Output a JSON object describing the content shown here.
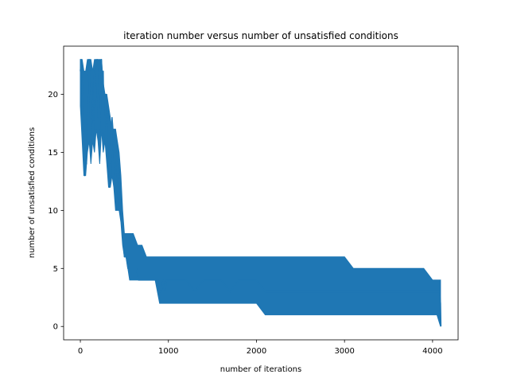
{
  "chart_data": {
    "type": "line",
    "title": "iteration number versus number of unsatisfied conditions",
    "xlabel": "number of iterations",
    "ylabel": "number of unsatisfied conditions",
    "xlim": [
      -190,
      4290
    ],
    "ylim": [
      -1.15,
      24.15
    ],
    "xticks": [
      0,
      1000,
      2000,
      3000,
      4000
    ],
    "yticks": [
      0,
      5,
      10,
      15,
      20
    ],
    "grid": false,
    "color": "#1f77b4",
    "series": [
      {
        "x": [
          0,
          10,
          20,
          30,
          40,
          50,
          60,
          70,
          80,
          90,
          100,
          110,
          120,
          130,
          140,
          150,
          160,
          170,
          180,
          190,
          200,
          210,
          220,
          230,
          240,
          250,
          260,
          270,
          280,
          290,
          300,
          310,
          320,
          330,
          340,
          350,
          360,
          370,
          380,
          390,
          400,
          410,
          420,
          430,
          440,
          450,
          460,
          470,
          480,
          490,
          500,
          520,
          540,
          560,
          580,
          600,
          620,
          640,
          660,
          680,
          700,
          720,
          740,
          760,
          780,
          800,
          820,
          840,
          860,
          880,
          900,
          920,
          940,
          960,
          980,
          1000,
          1100,
          1200,
          1300,
          1400,
          1500,
          1600,
          1700,
          1800,
          1900,
          2000,
          2100,
          2200,
          2300,
          2400,
          2500,
          2600,
          2700,
          2800,
          2900,
          3000,
          3100,
          3200,
          3300,
          3400,
          3500,
          3600,
          3700,
          3800,
          3900,
          4000,
          4050,
          4080,
          4090,
          4095
        ],
        "y": [
          22,
          23,
          20,
          21,
          17,
          13,
          16,
          14,
          19,
          22,
          23,
          18,
          20,
          21,
          16,
          17,
          22,
          19,
          21,
          23,
          18,
          20,
          17,
          19,
          23,
          21,
          22,
          16,
          18,
          20,
          19,
          15,
          13,
          12,
          14,
          13,
          18,
          17,
          16,
          13,
          12,
          15,
          14,
          11,
          12,
          10,
          11,
          9,
          8,
          7,
          6,
          6,
          5,
          5,
          5,
          5,
          5,
          5,
          4,
          4,
          4,
          4,
          4,
          4,
          4,
          4,
          4,
          4,
          4,
          4,
          3,
          3,
          4,
          3,
          4,
          4,
          4,
          4,
          3,
          4,
          4,
          4,
          3,
          4,
          4,
          4,
          3,
          3,
          3,
          3,
          3,
          3,
          3,
          3,
          3,
          3,
          3,
          3,
          3,
          3,
          3,
          3,
          3,
          3,
          3,
          3,
          3,
          3,
          2,
          0
        ]
      }
    ],
    "band": {
      "x": [
        0,
        20,
        40,
        60,
        80,
        100,
        120,
        140,
        160,
        180,
        200,
        220,
        240,
        260,
        280,
        300,
        320,
        340,
        360,
        380,
        400,
        420,
        440,
        460,
        480,
        500,
        520,
        540,
        560,
        580,
        600,
        650,
        700,
        750,
        800,
        850,
        900,
        950,
        1000,
        1100,
        1200,
        1300,
        1400,
        1500,
        1600,
        1700,
        1800,
        1900,
        2000,
        2100,
        2200,
        2300,
        2400,
        2500,
        2600,
        2700,
        2800,
        2900,
        3000,
        3100,
        3200,
        3300,
        3400,
        3500,
        3600,
        3700,
        3800,
        3900,
        4000,
        4050,
        4090
      ],
      "low": [
        19,
        16,
        13,
        13,
        15,
        16,
        14,
        16,
        15,
        17,
        16,
        14,
        17,
        15,
        16,
        14,
        12,
        12,
        13,
        12,
        10,
        10,
        10,
        9,
        7,
        6,
        6,
        5,
        4,
        4,
        4,
        4,
        4,
        4,
        4,
        4,
        2,
        2,
        2,
        2,
        2,
        2,
        2,
        2,
        2,
        2,
        2,
        2,
        2,
        1,
        1,
        1,
        1,
        1,
        1,
        1,
        1,
        1,
        1,
        1,
        1,
        1,
        1,
        1,
        1,
        1,
        1,
        1,
        1,
        1,
        0
      ],
      "high": [
        23,
        23,
        22,
        22,
        23,
        23,
        23,
        22,
        23,
        23,
        23,
        23,
        23,
        21,
        20,
        20,
        19,
        18,
        17,
        17,
        17,
        16,
        15,
        13,
        10,
        8,
        8,
        8,
        8,
        8,
        8,
        7,
        7,
        6,
        6,
        6,
        6,
        6,
        6,
        6,
        6,
        6,
        6,
        6,
        6,
        6,
        6,
        6,
        6,
        6,
        6,
        6,
        6,
        6,
        6,
        6,
        6,
        6,
        6,
        5,
        5,
        5,
        5,
        5,
        5,
        5,
        5,
        5,
        4,
        4,
        4
      ]
    }
  }
}
